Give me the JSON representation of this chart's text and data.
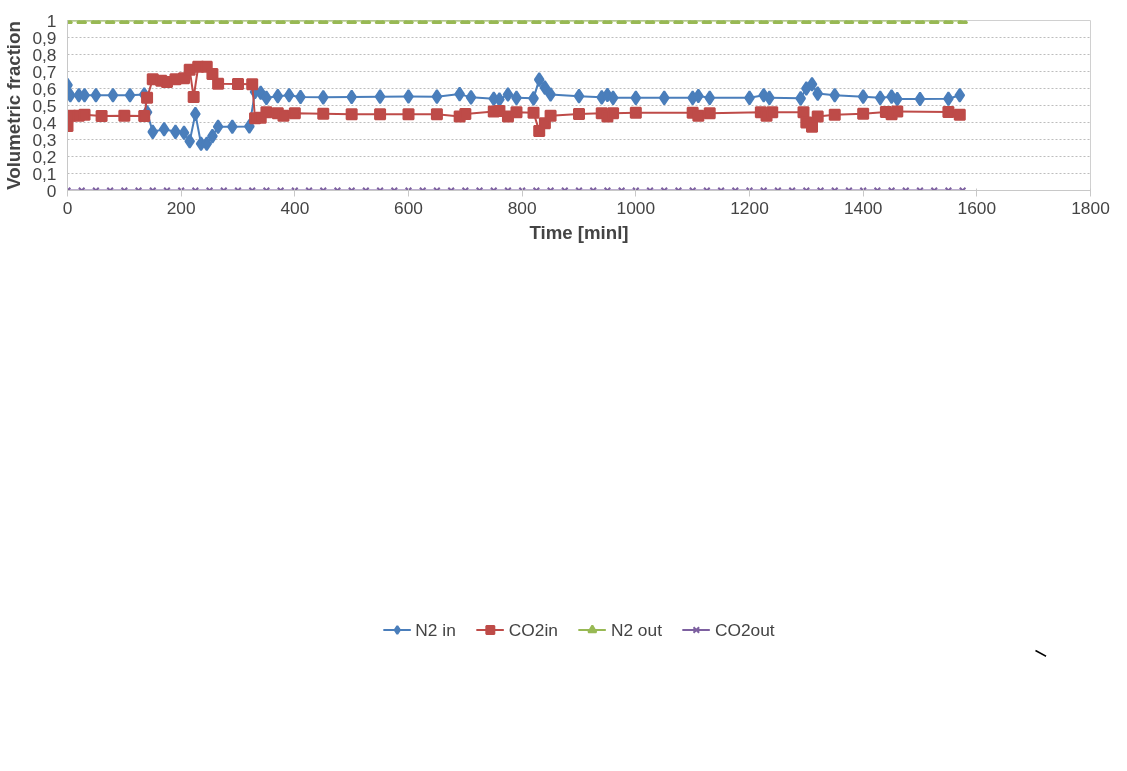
{
  "chart_data": {
    "type": "line",
    "xlabel": "Time [minl]",
    "ylabel": "Volumetric fraction",
    "xlim": [
      0,
      1800
    ],
    "xticks": [
      0,
      200,
      400,
      600,
      800,
      1000,
      1200,
      1400,
      1600,
      1800
    ],
    "ylim": [
      0,
      1
    ],
    "yticks": [
      {
        "value": 0,
        "label": "0"
      },
      {
        "value": 0.1,
        "label": "0,1"
      },
      {
        "value": 0.2,
        "label": "0,2"
      },
      {
        "value": 0.3,
        "label": "0,3"
      },
      {
        "value": 0.4,
        "label": "0,4"
      },
      {
        "value": 0.5,
        "label": "0,5"
      },
      {
        "value": 0.6,
        "label": "0,6"
      },
      {
        "value": 0.7,
        "label": "0,7"
      },
      {
        "value": 0.8,
        "label": "0,8"
      },
      {
        "value": 0.9,
        "label": "0,9"
      },
      {
        "value": 1,
        "label": "1"
      }
    ],
    "grid": "y",
    "legend": "bottom",
    "line_style": "solid",
    "series": [
      {
        "name": "N2 in",
        "color": "#4a7ebb",
        "marker": "diamond",
        "x": [
          0,
          5,
          20,
          30,
          50,
          80,
          110,
          135,
          140,
          150,
          170,
          190,
          205,
          215,
          225,
          235,
          245,
          255,
          265,
          290,
          320,
          330,
          340,
          350,
          370,
          390,
          410,
          450,
          500,
          550,
          600,
          650,
          690,
          710,
          750,
          760,
          775,
          790,
          820,
          830,
          840,
          850,
          900,
          940,
          950,
          960,
          1000,
          1050,
          1100,
          1110,
          1130,
          1200,
          1225,
          1235,
          1290,
          1300,
          1310,
          1320,
          1350,
          1400,
          1430,
          1450,
          1460,
          1500,
          1550,
          1570
        ],
        "values": [
          0.62,
          0.56,
          0.56,
          0.56,
          0.56,
          0.56,
          0.56,
          0.565,
          0.46,
          0.345,
          0.36,
          0.345,
          0.34,
          0.29,
          0.45,
          0.275,
          0.275,
          0.32,
          0.375,
          0.375,
          0.377,
          0.58,
          0.575,
          0.545,
          0.555,
          0.56,
          0.55,
          0.548,
          0.55,
          0.552,
          0.553,
          0.552,
          0.567,
          0.548,
          0.54,
          0.535,
          0.565,
          0.545,
          0.542,
          0.652,
          0.605,
          0.565,
          0.555,
          0.548,
          0.562,
          0.545,
          0.545,
          0.545,
          0.545,
          0.556,
          0.545,
          0.545,
          0.56,
          0.545,
          0.542,
          0.6,
          0.625,
          0.57,
          0.56,
          0.552,
          0.545,
          0.552,
          0.538,
          0.538,
          0.54,
          0.56
        ]
      },
      {
        "name": "CO2in",
        "color": "#be4b48",
        "marker": "square",
        "x": [
          0,
          5,
          20,
          30,
          60,
          100,
          135,
          140,
          150,
          165,
          175,
          190,
          205,
          215,
          222,
          230,
          245,
          255,
          265,
          300,
          325,
          330,
          340,
          350,
          370,
          380,
          400,
          450,
          500,
          550,
          600,
          650,
          690,
          700,
          750,
          760,
          775,
          790,
          820,
          830,
          840,
          850,
          900,
          940,
          950,
          960,
          1000,
          1100,
          1110,
          1130,
          1220,
          1230,
          1240,
          1295,
          1300,
          1310,
          1320,
          1350,
          1400,
          1440,
          1450,
          1460,
          1550,
          1570
        ],
        "values": [
          0.38,
          0.44,
          0.44,
          0.445,
          0.438,
          0.44,
          0.438,
          0.545,
          0.655,
          0.645,
          0.638,
          0.655,
          0.66,
          0.71,
          0.55,
          0.728,
          0.728,
          0.685,
          0.628,
          0.627,
          0.625,
          0.425,
          0.428,
          0.46,
          0.455,
          0.44,
          0.455,
          0.452,
          0.448,
          0.448,
          0.448,
          0.448,
          0.435,
          0.45,
          0.465,
          0.468,
          0.435,
          0.46,
          0.458,
          0.35,
          0.395,
          0.44,
          0.45,
          0.455,
          0.435,
          0.455,
          0.458,
          0.458,
          0.44,
          0.455,
          0.46,
          0.44,
          0.46,
          0.46,
          0.4,
          0.375,
          0.435,
          0.445,
          0.452,
          0.462,
          0.448,
          0.465,
          0.462,
          0.445
        ]
      },
      {
        "name": "N2 out",
        "color": "#98b954",
        "marker": "triangle",
        "x": [
          0,
          25,
          50,
          75,
          100,
          125,
          150,
          175,
          200,
          225,
          250,
          275,
          300,
          325,
          350,
          375,
          400,
          425,
          450,
          475,
          500,
          525,
          550,
          575,
          600,
          625,
          650,
          675,
          700,
          725,
          750,
          775,
          800,
          825,
          850,
          875,
          900,
          925,
          950,
          975,
          1000,
          1025,
          1050,
          1075,
          1100,
          1125,
          1150,
          1175,
          1200,
          1225,
          1250,
          1275,
          1300,
          1325,
          1350,
          1375,
          1400,
          1425,
          1450,
          1475,
          1500,
          1525,
          1550,
          1575
        ],
        "values": [
          1,
          1,
          1,
          1,
          1,
          1,
          1,
          1,
          1,
          1,
          1,
          1,
          1,
          1,
          1,
          1,
          1,
          1,
          1,
          1,
          1,
          1,
          1,
          1,
          1,
          1,
          1,
          1,
          1,
          1,
          1,
          1,
          1,
          1,
          1,
          1,
          1,
          1,
          1,
          1,
          1,
          1,
          1,
          1,
          1,
          1,
          1,
          1,
          1,
          1,
          1,
          1,
          1,
          1,
          1,
          1,
          1,
          1,
          1,
          1,
          1,
          1,
          1,
          1
        ]
      },
      {
        "name": "CO2out",
        "color": "#7d60a0",
        "marker": "cross",
        "x": [
          0,
          25,
          50,
          75,
          100,
          125,
          150,
          175,
          200,
          225,
          250,
          275,
          300,
          325,
          350,
          375,
          400,
          425,
          450,
          475,
          500,
          525,
          550,
          575,
          600,
          625,
          650,
          675,
          700,
          725,
          750,
          775,
          800,
          825,
          850,
          875,
          900,
          925,
          950,
          975,
          1000,
          1025,
          1050,
          1075,
          1100,
          1125,
          1150,
          1175,
          1200,
          1225,
          1250,
          1275,
          1300,
          1325,
          1350,
          1375,
          1400,
          1425,
          1450,
          1475,
          1500,
          1525,
          1550,
          1575
        ],
        "values": [
          0,
          0,
          0,
          0,
          0,
          0,
          0,
          0,
          0,
          0,
          0,
          0,
          0,
          0,
          0,
          0,
          0,
          0,
          0,
          0,
          0,
          0,
          0,
          0,
          0,
          0,
          0,
          0,
          0,
          0,
          0,
          0,
          0,
          0,
          0,
          0,
          0,
          0,
          0,
          0,
          0,
          0,
          0,
          0,
          0,
          0,
          0,
          0,
          0,
          0,
          0,
          0,
          0,
          0,
          0,
          0,
          0,
          0,
          0,
          0,
          0,
          0,
          0,
          0
        ]
      }
    ]
  }
}
